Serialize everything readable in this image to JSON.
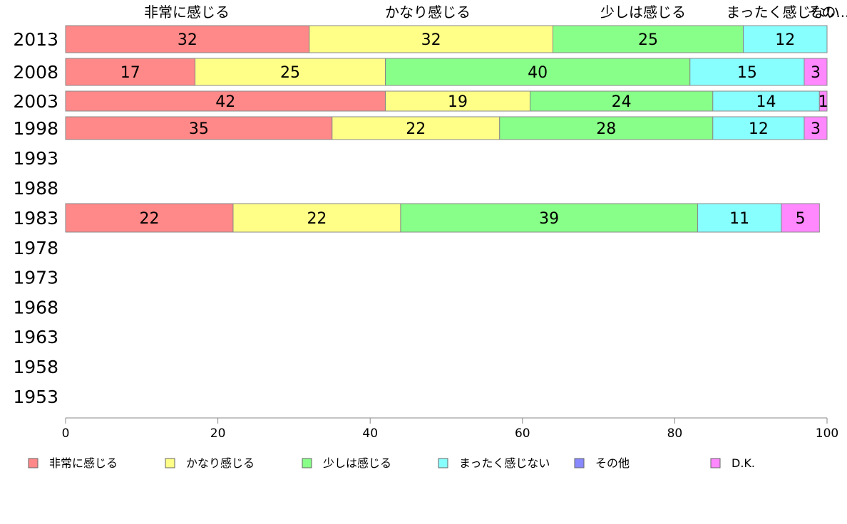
{
  "chart_data": {
    "type": "bar",
    "orientation": "horizontal",
    "stacked": true,
    "x_range": [
      0,
      100
    ],
    "x_ticks": [
      0,
      20,
      40,
      60,
      80,
      100
    ],
    "grid": false,
    "legend_position": "bottom",
    "top_labels": [
      "非常に感じる",
      "かなり感じる",
      "少しは感じる",
      "まったく感じない",
      "その..."
    ],
    "categories": [
      "2013",
      "2008",
      "2003",
      "1998",
      "1993",
      "1988",
      "1983",
      "1978",
      "1973",
      "1968",
      "1963",
      "1958",
      "1953"
    ],
    "series": [
      {
        "name": "非常に感じる",
        "color": "#ff8888",
        "values": [
          32,
          17,
          42,
          35,
          null,
          null,
          22,
          null,
          null,
          null,
          null,
          null,
          null
        ]
      },
      {
        "name": "かなり感じる",
        "color": "#ffff88",
        "values": [
          32,
          25,
          19,
          22,
          null,
          null,
          22,
          null,
          null,
          null,
          null,
          null,
          null
        ]
      },
      {
        "name": "少しは感じる",
        "color": "#88ff88",
        "values": [
          25,
          40,
          24,
          28,
          null,
          null,
          39,
          null,
          null,
          null,
          null,
          null,
          null
        ]
      },
      {
        "name": "まったく感じない",
        "color": "#88ffff",
        "values": [
          12,
          15,
          14,
          12,
          null,
          null,
          11,
          null,
          null,
          null,
          null,
          null,
          null
        ]
      },
      {
        "name": "その他",
        "color": "#8888ff",
        "values": [
          0,
          0,
          0,
          0,
          null,
          null,
          0,
          null,
          null,
          null,
          null,
          null,
          null
        ]
      },
      {
        "name": "D.K.",
        "color": "#ff88ff",
        "values": [
          0,
          3,
          1,
          3,
          null,
          null,
          5,
          null,
          null,
          null,
          null,
          null,
          null
        ]
      }
    ]
  }
}
